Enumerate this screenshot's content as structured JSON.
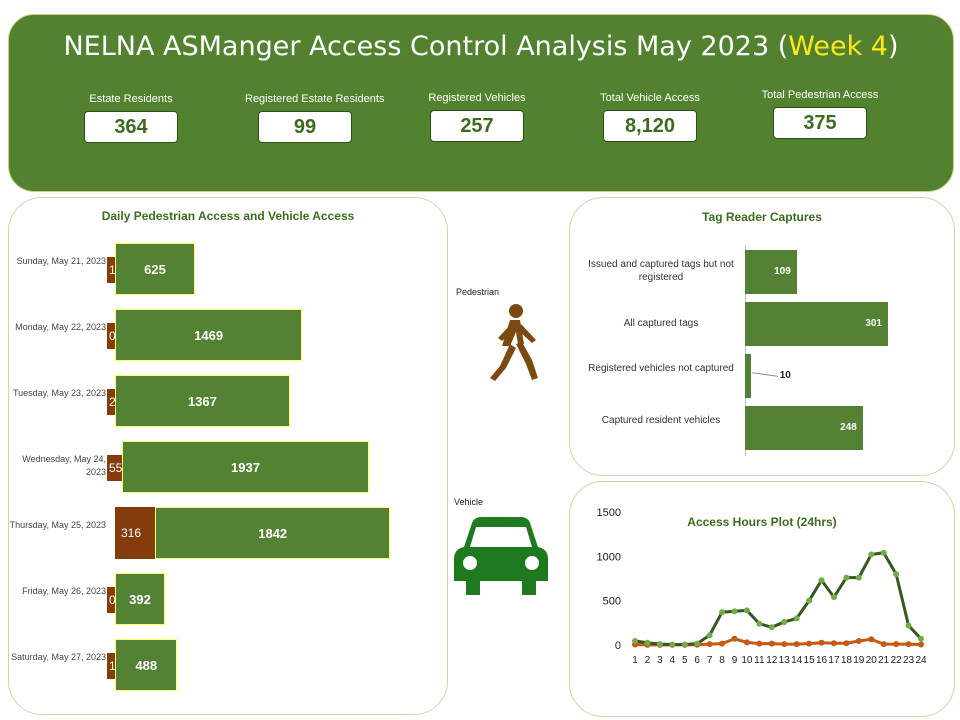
{
  "header": {
    "title_main": "NELNA ASManger Access Control Analysis May 2023 (",
    "title_week": "Week 4",
    "title_close": ")",
    "kpis": [
      {
        "label": "Estate Residents",
        "value": "364"
      },
      {
        "label": "Registered Estate Residents",
        "value": "99"
      },
      {
        "label": "Registered Vehicles",
        "value": "257"
      },
      {
        "label": "Total Vehicle Access",
        "value": "8,120"
      },
      {
        "label": "Total Pedestrian Access",
        "value": "375"
      }
    ]
  },
  "daily": {
    "title": "Daily Pedestrian Access and Vehicle Access",
    "days": [
      {
        "label": "Sunday, May 21, 2023",
        "pedestrian": 1,
        "vehicle": 625
      },
      {
        "label": "Monday, May 22, 2023",
        "pedestrian": 0,
        "vehicle": 1469
      },
      {
        "label": "Tuesday, May 23, 2023",
        "pedestrian": 2,
        "vehicle": 1367
      },
      {
        "label": "Wednesday, May 24, 2023",
        "pedestrian": 55,
        "vehicle": 1937
      },
      {
        "label": "Thursday, May 25, 2023",
        "pedestrian": 316,
        "vehicle": 1842
      },
      {
        "label": "Friday, May 26, 2023",
        "pedestrian": 0,
        "vehicle": 392
      },
      {
        "label": "Saturday, May 27, 2023",
        "pedestrian": 1,
        "vehicle": 488
      }
    ]
  },
  "legend_icons": {
    "pedestrian_label": "Pedestrian",
    "vehicle_label": "Vehicle",
    "pedestrian_icon": "walking-person-icon",
    "vehicle_icon": "car-icon"
  },
  "tags": {
    "title": "Tag Reader Captures",
    "items": [
      {
        "label": "Issued and captured tags but not registered",
        "value": 109
      },
      {
        "label": "All captured tags",
        "value": 301
      },
      {
        "label": "Registered vehicles not captured",
        "value": 10
      },
      {
        "label": "Captured resident vehicles",
        "value": 248
      }
    ]
  },
  "chart_data": {
    "type": "line",
    "title": "Access Hours Plot (24hrs)",
    "x": [
      1,
      2,
      3,
      4,
      5,
      6,
      7,
      8,
      9,
      10,
      11,
      12,
      13,
      14,
      15,
      16,
      17,
      18,
      19,
      20,
      21,
      22,
      23,
      24
    ],
    "yticks": [
      0,
      500,
      1000,
      1500
    ],
    "ylim": [
      0,
      1500
    ],
    "series": [
      {
        "color": "#375623",
        "marker": "#70ad47",
        "values": [
          45,
          25,
          10,
          5,
          5,
          15,
          110,
          370,
          380,
          390,
          240,
          200,
          260,
          300,
          500,
          730,
          540,
          760,
          760,
          1020,
          1040,
          800,
          220,
          70
        ]
      },
      {
        "color": "#c55a11",
        "marker": "#c55a11",
        "values": [
          5,
          2,
          1,
          1,
          1,
          3,
          10,
          15,
          70,
          30,
          15,
          15,
          10,
          10,
          15,
          25,
          20,
          20,
          45,
          65,
          10,
          10,
          10,
          5
        ]
      }
    ]
  },
  "colors": {
    "green": "#548235",
    "brown": "#843c0c",
    "accent": "#ffe81a"
  }
}
